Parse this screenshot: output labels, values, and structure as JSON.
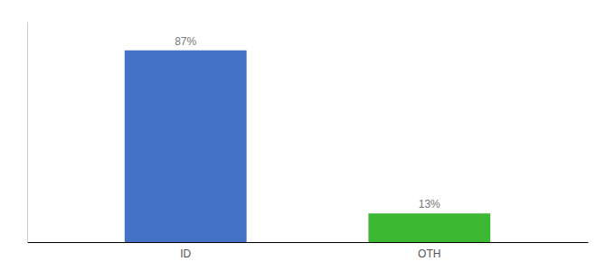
{
  "chart_data": {
    "type": "bar",
    "categories": [
      "ID",
      "OTH"
    ],
    "values": [
      87,
      13
    ],
    "value_labels": [
      "87%",
      "13%"
    ],
    "colors": [
      "#4472C4",
      "#3CB832"
    ],
    "ylim": [
      0,
      100
    ],
    "data_labels": true,
    "tick_labels": "x"
  }
}
